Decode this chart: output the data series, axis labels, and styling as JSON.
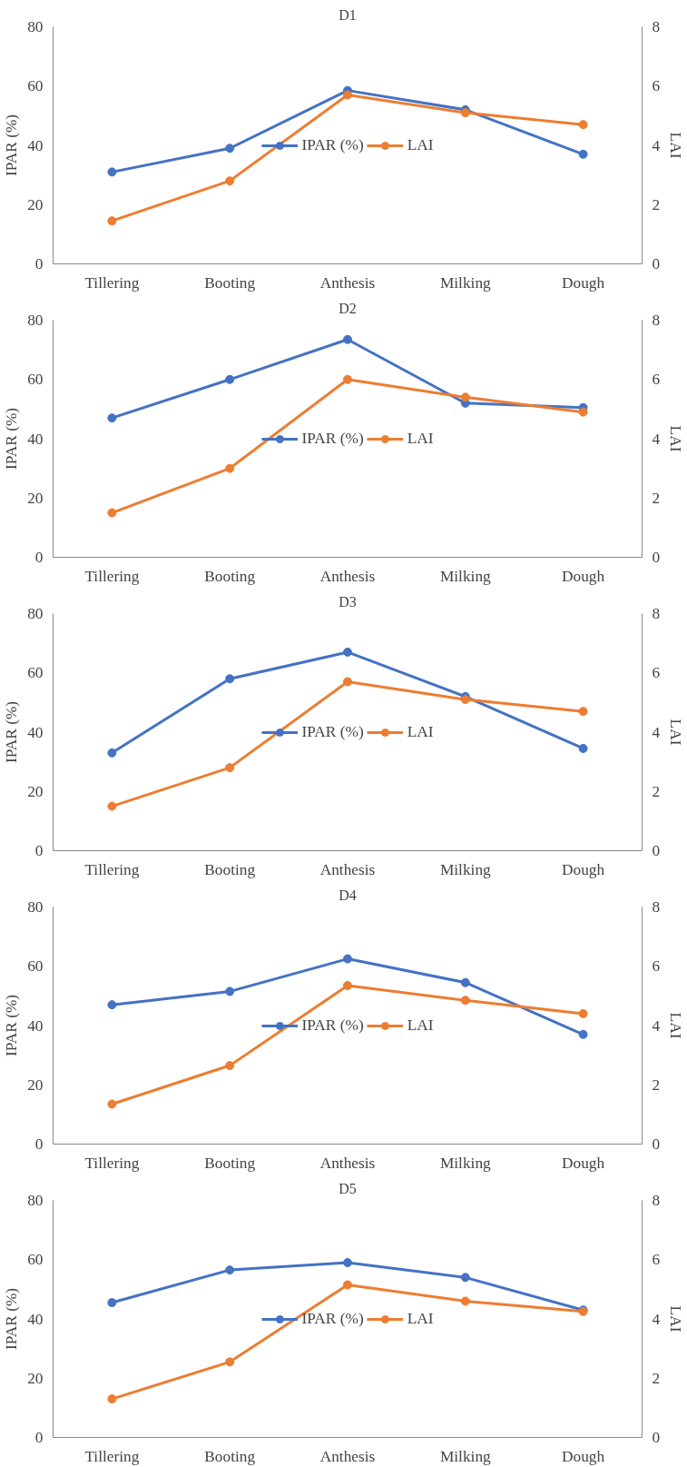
{
  "chart_data": [
    {
      "type": "line",
      "title": "D1",
      "ylabel": "IPAR (%)",
      "y2label": "LAI",
      "categories": [
        "Tillering",
        "Booting",
        "Anthesis",
        "Milking",
        "Dough"
      ],
      "ylim": [
        0,
        80
      ],
      "yticks": [
        0,
        20,
        40,
        60,
        80
      ],
      "y2lim": [
        0,
        8
      ],
      "y2ticks": [
        0,
        2,
        4,
        6,
        8
      ],
      "marker": "circle",
      "legend": "center",
      "grid": false,
      "series": [
        {
          "name": "IPAR (%)",
          "color": "#4472c4",
          "values": [
            31,
            39,
            58.5,
            52,
            37
          ]
        },
        {
          "name": "LAI",
          "color": "#ed7d31",
          "axis": "y2",
          "values": [
            1.45,
            2.8,
            5.7,
            5.1,
            4.7
          ]
        }
      ]
    },
    {
      "type": "line",
      "title": "D2",
      "ylabel": "IPAR (%)",
      "y2label": "LAI",
      "categories": [
        "Tillering",
        "Booting",
        "Anthesis",
        "Milking",
        "Dough"
      ],
      "ylim": [
        0,
        80
      ],
      "yticks": [
        0,
        20,
        40,
        60,
        80
      ],
      "y2lim": [
        0,
        8
      ],
      "y2ticks": [
        0,
        2,
        4,
        6,
        8
      ],
      "marker": "circle",
      "legend": "center",
      "grid": false,
      "series": [
        {
          "name": "IPAR (%)",
          "color": "#4472c4",
          "values": [
            47,
            60,
            73.5,
            52,
            50.5
          ]
        },
        {
          "name": "LAI",
          "color": "#ed7d31",
          "axis": "y2",
          "values": [
            1.5,
            3.0,
            6.0,
            5.4,
            4.9
          ]
        }
      ]
    },
    {
      "type": "line",
      "title": "D3",
      "ylabel": "IPAR (%)",
      "y2label": "LAI",
      "categories": [
        "Tillering",
        "Booting",
        "Anthesis",
        "Milking",
        "Dough"
      ],
      "ylim": [
        0,
        80
      ],
      "yticks": [
        0,
        20,
        40,
        60,
        80
      ],
      "y2lim": [
        0,
        8
      ],
      "y2ticks": [
        0,
        2,
        4,
        6,
        8
      ],
      "marker": "circle",
      "legend": "center",
      "grid": false,
      "series": [
        {
          "name": "IPAR (%)",
          "color": "#4472c4",
          "values": [
            33,
            58,
            67,
            52,
            34.5
          ]
        },
        {
          "name": "LAI",
          "color": "#ed7d31",
          "axis": "y2",
          "values": [
            1.5,
            2.8,
            5.7,
            5.1,
            4.7
          ]
        }
      ]
    },
    {
      "type": "line",
      "title": "D4",
      "ylabel": "IPAR (%)",
      "y2label": "LAI",
      "categories": [
        "Tillering",
        "Booting",
        "Anthesis",
        "Milking",
        "Dough"
      ],
      "ylim": [
        0,
        80
      ],
      "yticks": [
        0,
        20,
        40,
        60,
        80
      ],
      "y2lim": [
        0,
        8
      ],
      "y2ticks": [
        0,
        2,
        4,
        6,
        8
      ],
      "marker": "circle",
      "legend": "center",
      "grid": false,
      "series": [
        {
          "name": "IPAR (%)",
          "color": "#4472c4",
          "values": [
            47,
            51.5,
            62.5,
            54.5,
            37
          ]
        },
        {
          "name": "LAI",
          "color": "#ed7d31",
          "axis": "y2",
          "values": [
            1.35,
            2.65,
            5.35,
            4.85,
            4.4
          ]
        }
      ]
    },
    {
      "type": "line",
      "title": "D5",
      "ylabel": "IPAR (%)",
      "y2label": "LAI",
      "categories": [
        "Tillering",
        "Booting",
        "Anthesis",
        "Milking",
        "Dough"
      ],
      "ylim": [
        0,
        80
      ],
      "yticks": [
        0,
        20,
        40,
        60,
        80
      ],
      "y2lim": [
        0,
        8
      ],
      "y2ticks": [
        0,
        2,
        4,
        6,
        8
      ],
      "marker": "circle",
      "legend": "center",
      "grid": false,
      "series": [
        {
          "name": "IPAR (%)",
          "color": "#4472c4",
          "values": [
            45.5,
            56.5,
            59,
            54,
            43
          ]
        },
        {
          "name": "LAI",
          "color": "#ed7d31",
          "axis": "y2",
          "values": [
            1.3,
            2.55,
            5.15,
            4.6,
            4.25
          ]
        }
      ]
    }
  ]
}
